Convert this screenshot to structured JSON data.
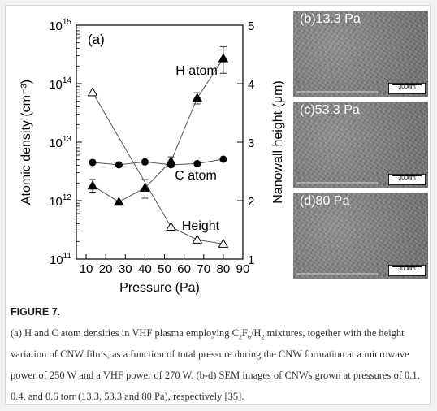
{
  "figure": {
    "title": "FIGURE 7.",
    "caption": {
      "p1": "(a) H and C atom densities in VHF plasma employing C",
      "s1": "2",
      "p2": "F",
      "s2": "6",
      "p3": "/H",
      "s3": "2",
      "p4": " mixtures, together with the height variation of CNW films, as a function of total pressure during the CNW formation at a microwave power of 250 W and a VHF power of 270 W. (b-d) SEM images of CNWs grown at pressures of 0.1, 0.4, and 0.6 torr (13.3, 53.3 and 80 Pa), respectively [35]."
    }
  },
  "sem_panels": [
    {
      "label": "(b)13.3 Pa",
      "scale": "300nm"
    },
    {
      "label": "(c)53.3 Pa",
      "scale": "300nm"
    },
    {
      "label": "(d)80 Pa",
      "scale": "300nm"
    }
  ],
  "chart_data": {
    "type": "scatter",
    "panel_label": "(a)",
    "xlabel": "Pressure (Pa)",
    "xlim": [
      5,
      90
    ],
    "xticks": [
      10,
      20,
      30,
      40,
      50,
      60,
      70,
      80,
      90
    ],
    "ylabel_left": "Atomic density (cm⁻³)",
    "ylim_left": [
      100000000000,
      1000000000000000
    ],
    "yscale_left": "log",
    "yticks_left": [
      {
        "base": "10",
        "exp": "11",
        "value": 100000000000
      },
      {
        "base": "10",
        "exp": "12",
        "value": 1000000000000
      },
      {
        "base": "10",
        "exp": "13",
        "value": 10000000000000
      },
      {
        "base": "10",
        "exp": "14",
        "value": 100000000000000
      },
      {
        "base": "10",
        "exp": "15",
        "value": 1000000000000000
      }
    ],
    "ylabel_right": "Nanowall height  (μm)",
    "ylim_right": [
      1,
      5
    ],
    "yticks_right": [
      1,
      2,
      3,
      4,
      5
    ],
    "series": [
      {
        "name": "H atom",
        "axis": "left",
        "marker": "triangle-filled",
        "x": [
          13.3,
          26.7,
          40,
          53.3,
          66.7,
          80
        ],
        "y": [
          1800000000000,
          950000000000,
          1650000000000,
          4700000000000,
          57000000000000,
          270000000000000
        ],
        "err_low": [
          1400000000000,
          950000000000,
          1100000000000,
          3800000000000,
          45000000000000,
          150000000000000
        ],
        "err_high": [
          2300000000000,
          950000000000,
          2300000000000,
          5600000000000,
          70000000000000,
          430000000000000
        ]
      },
      {
        "name": "C atom",
        "axis": "left",
        "marker": "circle-filled",
        "x": [
          13.3,
          26.7,
          40,
          53.3,
          66.7,
          80
        ],
        "y": [
          4500000000000,
          4100000000000,
          4600000000000,
          4100000000000,
          4300000000000,
          5100000000000
        ]
      },
      {
        "name": "Height",
        "axis": "right",
        "marker": "triangle-open",
        "x": [
          13.3,
          53.3,
          66.7,
          80
        ],
        "y": [
          3.85,
          1.55,
          1.33,
          1.26
        ]
      }
    ]
  }
}
